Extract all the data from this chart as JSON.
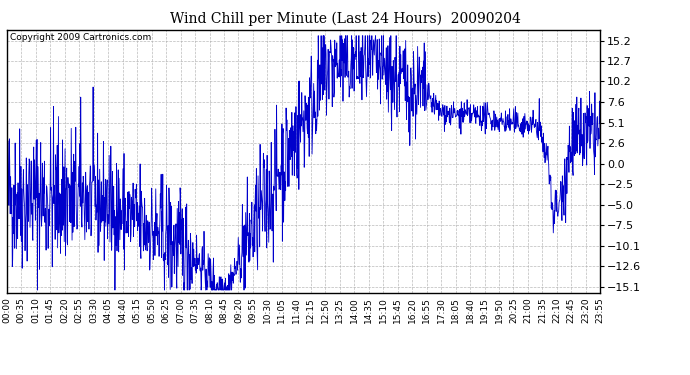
{
  "title": "Wind Chill per Minute (Last 24 Hours)  20090204",
  "copyright_text": "Copyright 2009 Cartronics.com",
  "line_color": "#0000CC",
  "background_color": "#FFFFFF",
  "plot_bg_color": "#FFFFFF",
  "grid_color": "#AAAAAA",
  "yticks": [
    15.2,
    12.7,
    10.2,
    7.6,
    5.1,
    2.6,
    0.0,
    -2.5,
    -5.0,
    -7.5,
    -10.1,
    -12.6,
    -15.1
  ],
  "ylim": [
    -15.8,
    16.5
  ],
  "xtick_labels": [
    "00:00",
    "00:35",
    "01:10",
    "01:45",
    "02:20",
    "02:55",
    "03:30",
    "04:05",
    "04:40",
    "05:15",
    "05:50",
    "06:25",
    "07:00",
    "07:35",
    "08:10",
    "08:45",
    "09:20",
    "09:55",
    "10:30",
    "11:05",
    "11:40",
    "12:15",
    "12:50",
    "13:25",
    "14:00",
    "14:35",
    "15:10",
    "15:45",
    "16:20",
    "16:55",
    "17:30",
    "18:05",
    "18:40",
    "19:15",
    "19:50",
    "20:25",
    "21:00",
    "21:35",
    "22:10",
    "22:45",
    "23:20",
    "23:55"
  ],
  "num_points": 1440,
  "seed": 42
}
